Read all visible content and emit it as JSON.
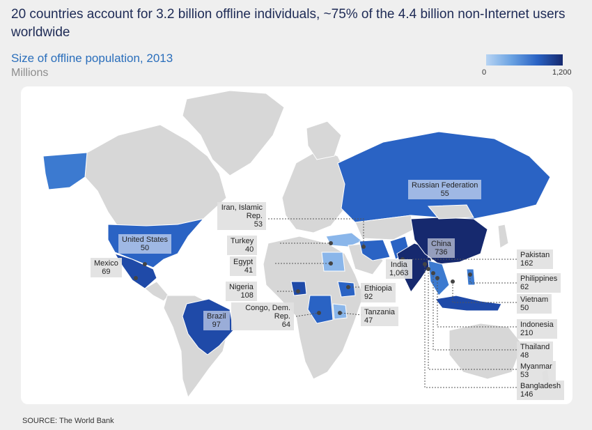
{
  "title": "20 countries account for 3.2 billion offline individuals, ~75% of the 4.4 billion non-Internet users worldwide",
  "subtitle": "Size of offline population, 2013",
  "units": "Millions",
  "legend": {
    "min": "0",
    "max": "1,200",
    "color_low": "#b7d4f3",
    "color_high": "#16296e"
  },
  "countries": [
    {
      "name": "Russian Federation",
      "value": "55"
    },
    {
      "name": "China",
      "value": "736"
    },
    {
      "name": "India",
      "value": "1,063"
    },
    {
      "name": "United States",
      "value": "50"
    },
    {
      "name": "Mexico",
      "value": "69"
    },
    {
      "name": "Brazil",
      "value": "97"
    },
    {
      "name": "Iran, Islamic Rep.",
      "value": "53"
    },
    {
      "name": "Turkey",
      "value": "40"
    },
    {
      "name": "Egypt",
      "value": "41"
    },
    {
      "name": "Nigeria",
      "value": "108"
    },
    {
      "name": "Congo, Dem. Rep.",
      "value": "64"
    },
    {
      "name": "Ethiopia",
      "value": "92"
    },
    {
      "name": "Tanzania",
      "value": "47"
    },
    {
      "name": "Pakistan",
      "value": "162"
    },
    {
      "name": "Philippines",
      "value": "62"
    },
    {
      "name": "Vietnam",
      "value": "50"
    },
    {
      "name": "Indonesia",
      "value": "210"
    },
    {
      "name": "Thailand",
      "value": "48"
    },
    {
      "name": "Myanmar",
      "value": "53"
    },
    {
      "name": "Bangladesh",
      "value": "146"
    }
  ],
  "source": "SOURCE: The World Bank"
}
